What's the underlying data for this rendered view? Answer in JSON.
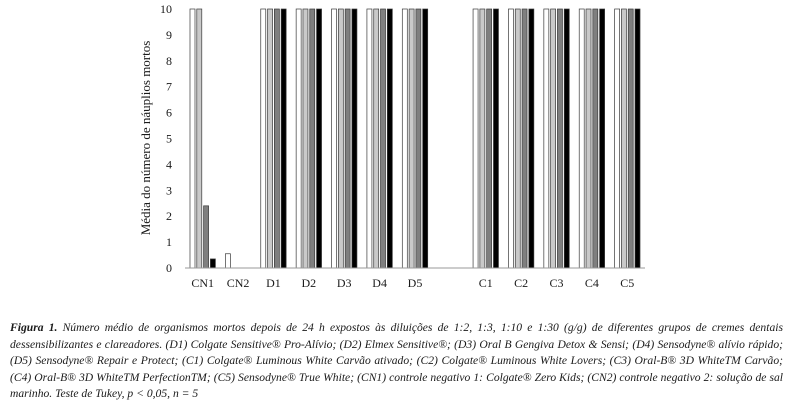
{
  "chart_data": {
    "type": "bar",
    "ylabel": "Média do número de náuplios mortos",
    "ylim": [
      0,
      10
    ],
    "yticks": [
      0,
      1,
      2,
      3,
      4,
      5,
      6,
      7,
      8,
      9,
      10
    ],
    "categories": [
      "CN1",
      "CN2",
      "D1",
      "D2",
      "D3",
      "D4",
      "D5",
      "",
      "C1",
      "C2",
      "C3",
      "C4",
      "C5"
    ],
    "series": [
      {
        "name": "1/2",
        "color": "#ffffff",
        "values": [
          10,
          0.55,
          10,
          10,
          10,
          10,
          10,
          null,
          10,
          10,
          10,
          10,
          10
        ]
      },
      {
        "name": "1/3",
        "color": "#c9c9c9",
        "values": [
          10,
          0,
          10,
          10,
          10,
          10,
          10,
          null,
          10,
          10,
          10,
          10,
          10
        ]
      },
      {
        "name": "1/10",
        "color": "#7f7f7f",
        "values": [
          2.4,
          0,
          10,
          10,
          10,
          10,
          10,
          null,
          10,
          10,
          10,
          10,
          10
        ]
      },
      {
        "name": "1/30",
        "color": "#000000",
        "values": [
          0.35,
          0,
          10,
          10,
          10,
          10,
          10,
          null,
          10,
          10,
          10,
          10,
          10
        ]
      }
    ],
    "legend_position": "bottom-center",
    "grid": false
  },
  "caption": {
    "label": "Figura 1.",
    "text": "Número médio de organismos mortos depois de 24 h expostos às diluições de 1:2, 1:3, 1:10 e 1:30 (g/g) de diferentes grupos de cremes dentais dessensibilizantes e clareadores. (D1) Colgate Sensitive® Pro-Alívio; (D2) Elmex Sensitive®; (D3) Oral B Gengiva Detox & Sensi; (D4) Sensodyne® alívio rápido; (D5) Sensodyne® Repair e Protect; (C1) Colgate® Luminous White Carvão ativado; (C2) Colgate® Luminous White Lovers; (C3) Oral-B® 3D WhiteTM Carvão; (C4) Oral-B® 3D WhiteTM PerfectionTM; (C5) Sensodyne® True White; (CN1) controle negativo 1: Colgate® Zero Kids; (CN2) controle negativo 2: solução de sal marinho. Teste de Tukey, p < 0,05, n = 5"
  }
}
